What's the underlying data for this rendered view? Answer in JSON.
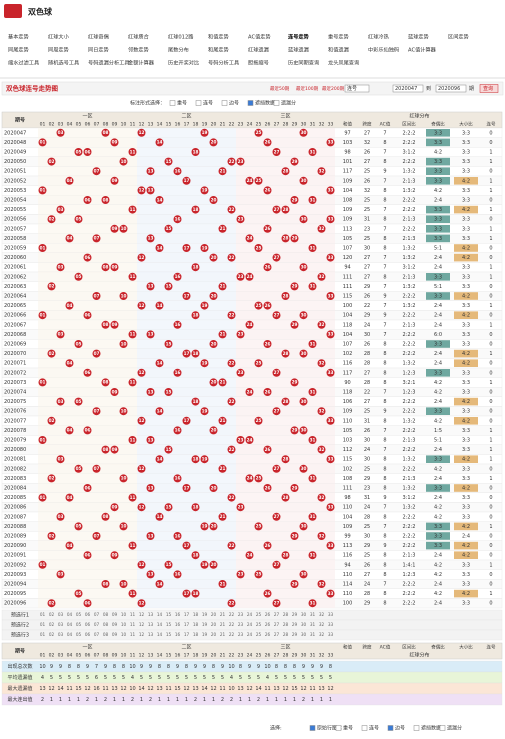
{
  "header": {
    "title": "双色球"
  },
  "nav": [
    [
      "基本走势",
      "红球大小",
      "红球奇偶",
      "红球质合",
      "红球012路",
      "和值走势",
      "AC值走势",
      "连号走势",
      "重号走势",
      "红球冷热",
      "蓝球走势",
      "区间走势"
    ],
    [
      "同尾走势",
      "同周走势",
      "同日走势",
      "邻数走势",
      "尾数分布",
      "和尾走势",
      "红球遗漏",
      "蓝球遗漏",
      "和值遗漏",
      "中彩乐仙独码",
      "AC值计算器"
    ],
    [
      "缩水过滤工具",
      "随机选号工具",
      "号码遗漏分析工具",
      "金额计算器",
      "历史开奖对比",
      "号码分析工具",
      "胆拖缩号",
      "历史同期查询",
      "龙头凤尾查询"
    ]
  ],
  "toolbar": {
    "title": "双色球连号走势图",
    "ranges": [
      "最近50期",
      "最近100期",
      "最近200期"
    ],
    "select": "连号",
    "from": "2020047",
    "to_label": "到",
    "to": "2020096",
    "unit": "期",
    "query": "查询"
  },
  "options": {
    "label": "标注形式选择：",
    "items": [
      "重号",
      "连号",
      "边号",
      "遮挡数据",
      "遗漏分"
    ]
  },
  "table": {
    "issue_header": "期号",
    "zones": [
      "一区",
      "二区",
      "三区"
    ],
    "stats_group": "红球分布",
    "numbers": [
      "01",
      "02",
      "03",
      "04",
      "05",
      "06",
      "07",
      "08",
      "09",
      "10",
      "11",
      "12",
      "13",
      "14",
      "15",
      "16",
      "17",
      "18",
      "19",
      "20",
      "21",
      "22",
      "23",
      "24",
      "25",
      "26",
      "27",
      "28",
      "29",
      "30",
      "31",
      "32",
      "33"
    ],
    "stat_headers": [
      "和值",
      "跨度",
      "AC值",
      "区间比",
      "奇偶比",
      "大小比",
      "连号"
    ],
    "rows": [
      [
        "2020047",
        [
          "03",
          "08",
          "12",
          "19",
          "25",
          "30"
        ],
        97,
        27,
        7,
        "2:2:2",
        "3:3",
        "3:3",
        0
      ],
      [
        "2020048",
        [
          "01",
          "09",
          "14",
          "20",
          "26",
          "33"
        ],
        103,
        32,
        8,
        "2:2:2",
        "3:3",
        "3:3",
        0
      ],
      [
        "2020049",
        [
          "05",
          "06",
          "11",
          "18",
          "27",
          "31"
        ],
        98,
        26,
        7,
        "3:1:2",
        "4:2",
        "3:3",
        1
      ],
      [
        "2020050",
        [
          "02",
          "10",
          "15",
          "22",
          "23",
          "29"
        ],
        101,
        27,
        8,
        "2:2:2",
        "3:3",
        "3:3",
        1
      ],
      [
        "2020051",
        [
          "07",
          "13",
          "16",
          "21",
          "28",
          "32"
        ],
        117,
        25,
        9,
        "1:3:2",
        "3:3",
        "3:3",
        0
      ],
      [
        "2020052",
        [
          "04",
          "09",
          "17",
          "24",
          "25",
          "30"
        ],
        109,
        26,
        7,
        "2:1:3",
        "3:3",
        "4:2",
        1
      ],
      [
        "2020053",
        [
          "01",
          "12",
          "13",
          "19",
          "26",
          "33"
        ],
        104,
        32,
        8,
        "1:3:2",
        "4:2",
        "3:3",
        1
      ],
      [
        "2020054",
        [
          "06",
          "08",
          "14",
          "20",
          "29",
          "31"
        ],
        108,
        25,
        8,
        "2:2:2",
        "2:4",
        "3:3",
        0
      ],
      [
        "2020055",
        [
          "03",
          "11",
          "18",
          "22",
          "27",
          "28"
        ],
        109,
        25,
        7,
        "2:2:2",
        "3:3",
        "4:2",
        1
      ],
      [
        "2020056",
        [
          "02",
          "05",
          "16",
          "23",
          "30",
          "33"
        ],
        109,
        31,
        8,
        "2:1:3",
        "3:3",
        "3:3",
        0
      ],
      [
        "2020057",
        [
          "09",
          "10",
          "15",
          "21",
          "26",
          "32"
        ],
        113,
        23,
        7,
        "2:2:2",
        "3:3",
        "3:3",
        1
      ],
      [
        "2020058",
        [
          "04",
          "07",
          "13",
          "24",
          "28",
          "29"
        ],
        105,
        25,
        8,
        "2:1:3",
        "3:3",
        "3:3",
        1
      ],
      [
        "2020059",
        [
          "01",
          "14",
          "17",
          "19",
          "25",
          "31"
        ],
        107,
        30,
        8,
        "1:3:2",
        "5:1",
        "4:2",
        0
      ],
      [
        "2020060",
        [
          "06",
          "12",
          "20",
          "22",
          "27",
          "33"
        ],
        120,
        27,
        7,
        "1:3:2",
        "2:4",
        "4:2",
        0
      ],
      [
        "2020061",
        [
          "03",
          "08",
          "09",
          "18",
          "26",
          "30"
        ],
        94,
        27,
        7,
        "3:1:2",
        "2:4",
        "3:3",
        1
      ],
      [
        "2020062",
        [
          "05",
          "11",
          "16",
          "23",
          "24",
          "32"
        ],
        111,
        27,
        8,
        "2:1:3",
        "3:3",
        "3:3",
        1
      ],
      [
        "2020063",
        [
          "02",
          "13",
          "15",
          "21",
          "29",
          "31"
        ],
        111,
        29,
        7,
        "1:3:2",
        "5:1",
        "3:3",
        0
      ],
      [
        "2020064",
        [
          "07",
          "10",
          "17",
          "20",
          "28",
          "33"
        ],
        115,
        26,
        9,
        "2:2:2",
        "3:3",
        "4:2",
        0
      ],
      [
        "2020065",
        [
          "04",
          "12",
          "14",
          "19",
          "25",
          "26"
        ],
        100,
        22,
        7,
        "1:3:2",
        "2:4",
        "3:3",
        1
      ],
      [
        "2020066",
        [
          "01",
          "06",
          "18",
          "22",
          "27",
          "30"
        ],
        104,
        29,
        9,
        "2:2:2",
        "2:4",
        "4:2",
        0
      ],
      [
        "2020067",
        [
          "08",
          "09",
          "16",
          "24",
          "29",
          "32"
        ],
        118,
        24,
        7,
        "2:1:3",
        "2:4",
        "3:3",
        1
      ],
      [
        "2020068",
        [
          "03",
          "11",
          "13",
          "21",
          "23",
          "33"
        ],
        104,
        30,
        7,
        "2:2:2",
        "6:0",
        "3:3",
        0
      ],
      [
        "2020069",
        [
          "05",
          "10",
          "15",
          "20",
          "26",
          "31"
        ],
        107,
        26,
        8,
        "2:2:2",
        "3:3",
        "3:3",
        0
      ],
      [
        "2020070",
        [
          "02",
          "07",
          "17",
          "18",
          "28",
          "30"
        ],
        102,
        28,
        8,
        "2:2:2",
        "2:4",
        "4:2",
        1
      ],
      [
        "2020071",
        [
          "04",
          "14",
          "19",
          "22",
          "25",
          "32"
        ],
        116,
        28,
        8,
        "1:3:2",
        "2:4",
        "4:2",
        0
      ],
      [
        "2020072",
        [
          "06",
          "12",
          "16",
          "23",
          "27",
          "33"
        ],
        117,
        27,
        8,
        "1:2:3",
        "3:3",
        "3:3",
        0
      ],
      [
        "2020073",
        [
          "01",
          "08",
          "11",
          "20",
          "21",
          "29"
        ],
        90,
        28,
        8,
        "3:2:1",
        "4:2",
        "3:3",
        1
      ],
      [
        "2020074",
        [
          "09",
          "13",
          "15",
          "24",
          "26",
          "31"
        ],
        118,
        22,
        7,
        "1:2:3",
        "4:2",
        "3:3",
        0
      ],
      [
        "2020075",
        [
          "03",
          "05",
          "18",
          "22",
          "28",
          "30"
        ],
        106,
        27,
        8,
        "2:2:2",
        "2:4",
        "4:2",
        0
      ],
      [
        "2020076",
        [
          "07",
          "10",
          "14",
          "19",
          "27",
          "32"
        ],
        109,
        25,
        9,
        "2:2:2",
        "3:3",
        "3:3",
        0
      ],
      [
        "2020077",
        [
          "02",
          "12",
          "17",
          "21",
          "25",
          "33"
        ],
        110,
        31,
        8,
        "1:3:2",
        "4:2",
        "4:2",
        0
      ],
      [
        "2020078",
        [
          "04",
          "06",
          "16",
          "20",
          "29",
          "30"
        ],
        105,
        26,
        7,
        "2:2:2",
        "1:5",
        "3:3",
        1
      ],
      [
        "2020079",
        [
          "01",
          "11",
          "13",
          "23",
          "24",
          "31"
        ],
        103,
        30,
        8,
        "2:1:3",
        "5:1",
        "3:3",
        1
      ],
      [
        "2020080",
        [
          "08",
          "09",
          "15",
          "22",
          "26",
          "32"
        ],
        112,
        24,
        7,
        "2:2:2",
        "2:4",
        "3:3",
        1
      ],
      [
        "2020081",
        [
          "03",
          "14",
          "18",
          "19",
          "28",
          "33"
        ],
        115,
        30,
        8,
        "1:3:2",
        "3:3",
        "4:2",
        1
      ],
      [
        "2020082",
        [
          "05",
          "07",
          "12",
          "21",
          "27",
          "30"
        ],
        102,
        25,
        8,
        "2:2:2",
        "4:2",
        "3:3",
        0
      ],
      [
        "2020083",
        [
          "02",
          "10",
          "16",
          "24",
          "25",
          "31"
        ],
        108,
        29,
        8,
        "2:1:3",
        "2:4",
        "3:3",
        1
      ],
      [
        "2020084",
        [
          "06",
          "13",
          "17",
          "20",
          "26",
          "29"
        ],
        111,
        23,
        8,
        "1:3:2",
        "3:3",
        "4:2",
        0
      ],
      [
        "2020085",
        [
          "01",
          "04",
          "11",
          "22",
          "28",
          "32"
        ],
        98,
        31,
        9,
        "3:1:2",
        "2:4",
        "3:3",
        0
      ],
      [
        "2020086",
        [
          "09",
          "12",
          "15",
          "18",
          "23",
          "33"
        ],
        110,
        24,
        7,
        "1:3:2",
        "4:2",
        "3:3",
        0
      ],
      [
        "2020087",
        [
          "03",
          "08",
          "14",
          "21",
          "27",
          "31"
        ],
        104,
        28,
        8,
        "2:2:2",
        "4:2",
        "3:3",
        0
      ],
      [
        "2020088",
        [
          "05",
          "10",
          "19",
          "20",
          "25",
          "30"
        ],
        109,
        25,
        7,
        "2:2:2",
        "3:3",
        "4:2",
        1
      ],
      [
        "2020089",
        [
          "02",
          "07",
          "13",
          "16",
          "29",
          "32"
        ],
        99,
        30,
        8,
        "2:2:2",
        "3:3",
        "2:4",
        0
      ],
      [
        "2020090",
        [
          "04",
          "11",
          "17",
          "22",
          "26",
          "33"
        ],
        113,
        29,
        9,
        "2:2:2",
        "3:3",
        "4:2",
        0
      ],
      [
        "2020091",
        [
          "06",
          "09",
          "18",
          "24",
          "28",
          "31"
        ],
        116,
        25,
        8,
        "2:1:3",
        "2:4",
        "4:2",
        0
      ],
      [
        "2020092",
        [
          "01",
          "12",
          "15",
          "19",
          "20",
          "27"
        ],
        94,
        26,
        8,
        "1:4:1",
        "4:2",
        "3:3",
        1
      ],
      [
        "2020093",
        [
          "03",
          "13",
          "16",
          "23",
          "25",
          "30"
        ],
        110,
        27,
        8,
        "1:2:3",
        "4:2",
        "3:3",
        0
      ],
      [
        "2020094",
        [
          "08",
          "10",
          "14",
          "21",
          "29",
          "32"
        ],
        114,
        24,
        7,
        "2:2:2",
        "2:4",
        "3:3",
        0
      ],
      [
        "2020095",
        [
          "05",
          "11",
          "17",
          "18",
          "26",
          "33"
        ],
        110,
        28,
        8,
        "2:2:2",
        "4:2",
        "4:2",
        1
      ],
      [
        "2020096",
        [
          "02",
          "06",
          "12",
          "22",
          "27",
          "31"
        ],
        100,
        29,
        8,
        "2:2:2",
        "2:4",
        "3:3",
        0
      ]
    ],
    "preselect": [
      "预选行1",
      "预选行2",
      "预选行3"
    ],
    "summary": [
      {
        "label": "出现总次数",
        "values": [
          10,
          9,
          9,
          8,
          8,
          9,
          7,
          9,
          8,
          8,
          10,
          9,
          9,
          8,
          8,
          9,
          8,
          9,
          9,
          8,
          9,
          10,
          8,
          9,
          9,
          10,
          8,
          8,
          8,
          9,
          9,
          9,
          8
        ]
      },
      {
        "label": "平均遗漏值",
        "values": [
          4,
          5,
          5,
          5,
          5,
          5,
          6,
          5,
          5,
          5,
          4,
          5,
          5,
          5,
          5,
          5,
          5,
          5,
          5,
          5,
          5,
          4,
          5,
          5,
          5,
          4,
          5,
          5,
          5,
          5,
          5,
          5,
          5
        ]
      },
      {
        "label": "最大遗漏值",
        "values": [
          13,
          12,
          14,
          11,
          15,
          12,
          16,
          11,
          13,
          12,
          10,
          14,
          12,
          13,
          11,
          15,
          12,
          13,
          14,
          12,
          11,
          10,
          13,
          12,
          14,
          11,
          13,
          12,
          15,
          12,
          11,
          13,
          12
        ]
      },
      {
        "label": "最大连出值",
        "values": [
          2,
          1,
          1,
          1,
          1,
          2,
          1,
          2,
          1,
          1,
          2,
          1,
          2,
          1,
          1,
          1,
          1,
          2,
          1,
          1,
          2,
          2,
          1,
          1,
          2,
          1,
          1,
          1,
          1,
          2,
          1,
          1,
          1
        ]
      }
    ]
  },
  "footer": {
    "label": "选择:",
    "items": [
      "原始行图示",
      "重号",
      "连号",
      "边号",
      "遮挡数据",
      "遗漏分"
    ]
  }
}
